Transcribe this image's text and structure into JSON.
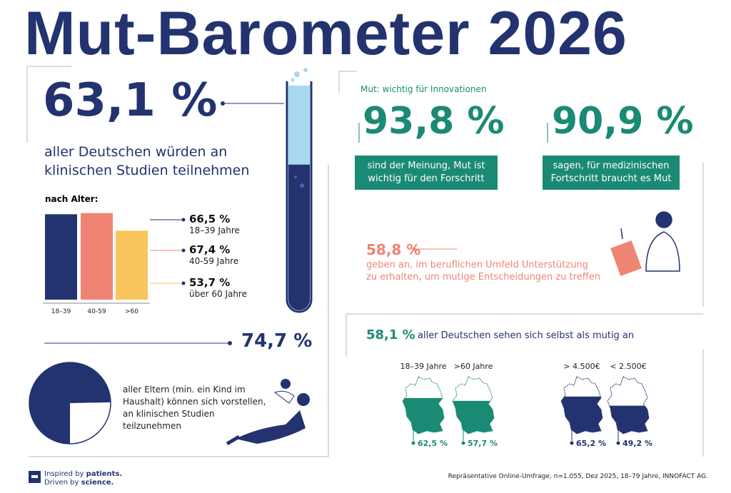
{
  "title": "Mut-Barometer 2026",
  "headline": {
    "value": 63.1,
    "label": "63,1 %",
    "text": "aller Deutschen würden an klinischen Studien teilnehmen"
  },
  "age_chart": {
    "label": "nach Alter:",
    "categories": [
      "18–39",
      "40-59",
      ">60"
    ],
    "values": [
      66.5,
      67.4,
      53.7
    ],
    "value_labels": [
      "66,5 %",
      "67,4 %",
      "53,7 %"
    ],
    "descriptions": [
      "18–39 Jahre",
      "40-59 Jahre",
      "über 60 Jahre"
    ],
    "colors": [
      "#23336f",
      "#f08474",
      "#f9c55e"
    ]
  },
  "parents": {
    "value": 74.7,
    "label": "74,7 %",
    "text": "aller Eltern (min. ein Kind im Haushalt) können sich vorstellen, an klinischen Studien teilzunehmen"
  },
  "innovation": {
    "heading": "Mut: wichtig für Innovationen",
    "stats": [
      {
        "label": "93,8 %",
        "text": "sind der Meinung, Mut ist wichtig für den Forschritt"
      },
      {
        "label": "90,9 %",
        "text": "sagen, für medizinischen Fortschritt braucht es Mut"
      }
    ]
  },
  "support": {
    "label": "58,8 %",
    "text": "geben an, im beruflichen Umfeld Unterstützung zu erhalten, um mutige Entscheidungen zu treffen"
  },
  "courage": {
    "label": "58,1 %",
    "text": "aller Deutschen sehen sich selbst als mutig an",
    "maps": [
      {
        "group": "18–39 Jahre",
        "value": 62.5,
        "label": "62,5 %",
        "color": "#1b8a74"
      },
      {
        "group": ">60 Jahre",
        "value": 57.7,
        "label": "57,7 %",
        "color": "#1b8a74"
      },
      {
        "group": "> 4.500€",
        "value": 65.2,
        "label": "65,2 %",
        "color": "#23336f"
      },
      {
        "group": "< 2.500€",
        "value": 49.2,
        "label": "49,2 %",
        "color": "#23336f"
      }
    ]
  },
  "footer": {
    "tagline": [
      "Inspired by",
      "patients.",
      "Driven by",
      "science."
    ],
    "source": "Repräsentative Online-Umfrage, n=1.055, Dez 2025, 18–79 Jahre, INNOFACT AG."
  }
}
